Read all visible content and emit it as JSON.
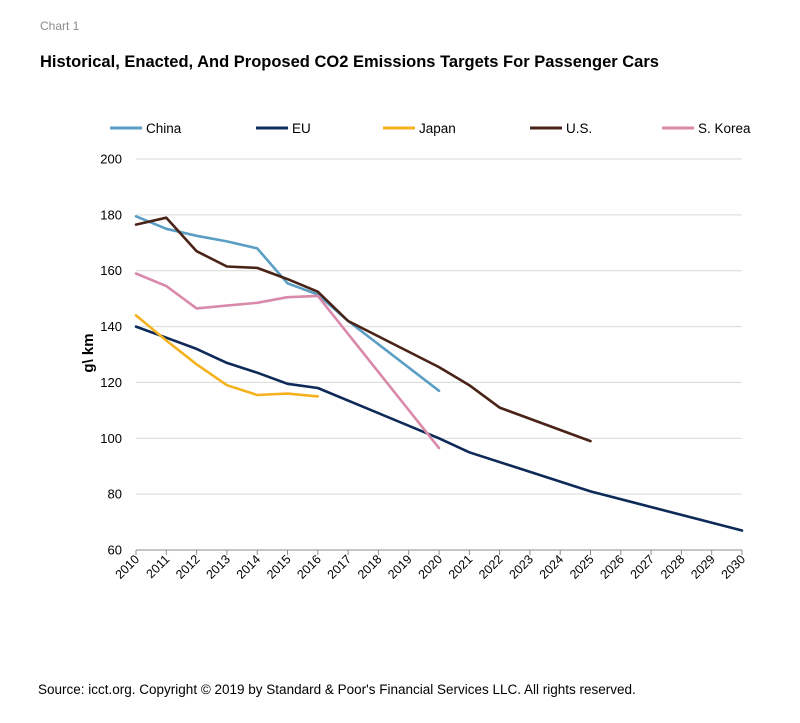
{
  "header": {
    "label": "Chart 1",
    "title": "Historical, Enacted, And Proposed CO2 Emissions Targets For Passenger Cars"
  },
  "footer": {
    "source": "Source: icct.org. Copyright © 2019 by Standard & Poor's Financial Services LLC. All rights reserved."
  },
  "chart_data": {
    "type": "line",
    "title": "Historical, Enacted, And Proposed CO2 Emissions Targets For Passenger Cars",
    "xlabel": "",
    "ylabel": "g\\ km",
    "xlim": [
      2010,
      2030
    ],
    "ylim": [
      60,
      200
    ],
    "yticks": [
      60,
      80,
      100,
      120,
      140,
      160,
      180,
      200
    ],
    "xticks": [
      2010,
      2011,
      2012,
      2013,
      2014,
      2015,
      2016,
      2017,
      2018,
      2019,
      2020,
      2021,
      2022,
      2023,
      2024,
      2025,
      2026,
      2027,
      2028,
      2029,
      2030
    ],
    "grid": "horizontal",
    "legend_position": "top",
    "series": [
      {
        "name": "China",
        "color": "#5b9ec4",
        "points": [
          [
            2010,
            179.5
          ],
          [
            2011,
            175
          ],
          [
            2012,
            172.5
          ],
          [
            2013,
            170.5
          ],
          [
            2014,
            168
          ],
          [
            2015,
            155.5
          ],
          [
            2016,
            151.5
          ],
          [
            2017,
            142
          ],
          [
            2020,
            117
          ]
        ]
      },
      {
        "name": "EU",
        "color": "#0d2a58",
        "points": [
          [
            2010,
            140
          ],
          [
            2011,
            136
          ],
          [
            2012,
            132
          ],
          [
            2013,
            127
          ],
          [
            2014,
            123.5
          ],
          [
            2015,
            119.5
          ],
          [
            2016,
            118
          ],
          [
            2020,
            100
          ],
          [
            2021,
            95
          ],
          [
            2025,
            81
          ],
          [
            2030,
            67
          ]
        ]
      },
      {
        "name": "Japan",
        "color": "#f6b21e",
        "points": [
          [
            2010,
            144
          ],
          [
            2011,
            135
          ],
          [
            2012,
            126.5
          ],
          [
            2013,
            119
          ],
          [
            2014,
            115.5
          ],
          [
            2015,
            116
          ],
          [
            2016,
            115
          ]
        ]
      },
      {
        "name": "U.S.",
        "color": "#4a2318",
        "points": [
          [
            2010,
            176.5
          ],
          [
            2011,
            179
          ],
          [
            2012,
            167
          ],
          [
            2013,
            161.5
          ],
          [
            2014,
            161
          ],
          [
            2015,
            157
          ],
          [
            2016,
            152.5
          ],
          [
            2017,
            142
          ],
          [
            2020,
            125.5
          ],
          [
            2021,
            119
          ],
          [
            2022,
            111
          ],
          [
            2025,
            99
          ]
        ]
      },
      {
        "name": "S. Korea",
        "color": "#d98aaa",
        "points": [
          [
            2010,
            159
          ],
          [
            2011,
            154.5
          ],
          [
            2012,
            146.5
          ],
          [
            2013,
            147.5
          ],
          [
            2014,
            148.5
          ],
          [
            2015,
            150.5
          ],
          [
            2016,
            151
          ],
          [
            2020,
            96.5
          ]
        ]
      }
    ]
  }
}
